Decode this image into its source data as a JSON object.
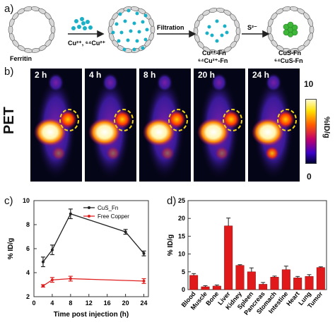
{
  "panel_a": {
    "letter": "a)",
    "labels": {
      "ferritin": "Ferritin",
      "ions": "Cu²⁺, ⁶⁴Cu²⁺",
      "filtration": "Filtration",
      "s2": "S²⁻",
      "cu_fn": "Cu²⁺-Fn",
      "cu64_fn": "⁶⁴Cu²⁺-Fn",
      "cus_fn": "CuS-Fn",
      "cus64_fn": "⁶⁴CuS-Fn"
    }
  },
  "panel_b": {
    "letter": "b)",
    "side_label": "PET",
    "times": [
      "2 h",
      "4 h",
      "8 h",
      "20 h",
      "24 h"
    ],
    "colorbar": {
      "max": "10",
      "min": "0",
      "unit": "%ID/g"
    }
  },
  "chart_data": [
    {
      "type": "line",
      "letter": "c)",
      "xlabel": "Time post injection (h)",
      "ylabel": "% ID/g",
      "xlim": [
        0,
        25
      ],
      "ylim": [
        2,
        10
      ],
      "xticks": [
        0,
        4,
        8,
        12,
        16,
        20,
        24
      ],
      "yticks": [
        2,
        4,
        6,
        8,
        10
      ],
      "legend_position": "top-right",
      "series": [
        {
          "name": "CuS_Fn",
          "color": "#222222",
          "x": [
            2,
            4,
            8,
            20,
            24
          ],
          "y": [
            4.9,
            5.9,
            8.9,
            7.4,
            5.6
          ],
          "err": [
            0.4,
            0.4,
            0.4,
            0.2,
            0.2
          ]
        },
        {
          "name": "Free Copper",
          "color": "#e02020",
          "x": [
            2,
            4,
            8,
            24
          ],
          "y": [
            2.9,
            3.4,
            3.5,
            3.3
          ],
          "err": [
            0.1,
            0.2,
            0.2,
            0.2
          ]
        }
      ]
    },
    {
      "type": "bar",
      "letter": "d)",
      "ylabel": "% ID/g",
      "ylim": [
        0,
        25
      ],
      "yticks": [
        0,
        5,
        10,
        15,
        20,
        25
      ],
      "color": "#e01a1a",
      "categories": [
        "Blood",
        "Muscle",
        "Bone",
        "Liver",
        "Kidney",
        "Spleen",
        "Pancreas",
        "Stomach",
        "Intestine",
        "Heart",
        "Lung",
        "Tumor"
      ],
      "values": [
        4.0,
        0.8,
        1.0,
        17.9,
        6.8,
        5.0,
        1.5,
        3.5,
        5.6,
        3.3,
        3.7,
        6.2
      ],
      "err": [
        0.5,
        0.3,
        0.3,
        2.2,
        0.2,
        1.1,
        0.5,
        0.3,
        1.0,
        0.4,
        0.5,
        0.2
      ]
    }
  ]
}
